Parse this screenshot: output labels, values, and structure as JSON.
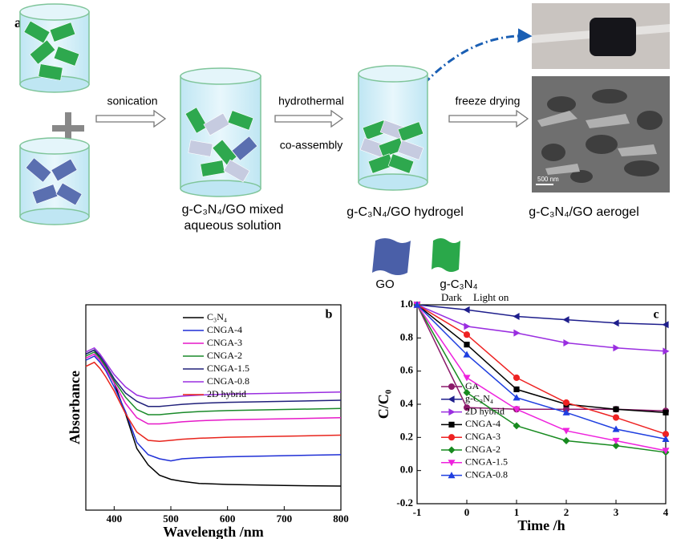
{
  "schematic": {
    "panel": "a",
    "arrows": [
      "sonication",
      "hydrothermal",
      "co-assembly",
      "freeze drying"
    ],
    "captions": [
      "g-C₃N₄/GO mixed",
      "aqueous solution",
      "g-C₃N₄/GO hydrogel",
      "g-C₃N₄/GO aerogel"
    ],
    "legend": [
      "GO",
      "g-C₃N₄"
    ],
    "scale_bar": "500 nm"
  },
  "chart_data": [
    {
      "type": "line",
      "panel": "b",
      "x_label": "Wavelength /nm",
      "y_label": "Absorbance",
      "x": [
        350,
        365,
        375,
        385,
        400,
        420,
        440,
        460,
        480,
        500,
        520,
        550,
        600,
        700,
        800
      ],
      "xlim": [
        350,
        800
      ],
      "xticks": [
        400,
        500,
        600,
        700,
        800
      ],
      "ylim": [
        0,
        1
      ],
      "series": [
        {
          "name": "C₃N₄",
          "color": "#000000",
          "values": [
            0.76,
            0.78,
            0.74,
            0.7,
            0.62,
            0.47,
            0.3,
            0.22,
            0.17,
            0.15,
            0.14,
            0.13,
            0.125,
            0.12,
            0.117
          ]
        },
        {
          "name": "CNGA-4",
          "color": "#1f2fd6",
          "values": [
            0.73,
            0.75,
            0.72,
            0.68,
            0.6,
            0.48,
            0.33,
            0.27,
            0.25,
            0.24,
            0.25,
            0.255,
            0.26,
            0.265,
            0.27
          ]
        },
        {
          "name": "CNGA-3",
          "color": "#e619c8",
          "values": [
            0.74,
            0.76,
            0.73,
            0.69,
            0.62,
            0.52,
            0.45,
            0.42,
            0.42,
            0.425,
            0.43,
            0.435,
            0.44,
            0.445,
            0.45
          ]
        },
        {
          "name": "CNGA-2",
          "color": "#1a8a2a",
          "values": [
            0.75,
            0.77,
            0.74,
            0.7,
            0.63,
            0.55,
            0.49,
            0.465,
            0.465,
            0.47,
            0.475,
            0.48,
            0.485,
            0.49,
            0.495
          ]
        },
        {
          "name": "CNGA-1.5",
          "color": "#20207a",
          "values": [
            0.76,
            0.78,
            0.75,
            0.71,
            0.64,
            0.57,
            0.53,
            0.505,
            0.505,
            0.51,
            0.515,
            0.52,
            0.525,
            0.53,
            0.535
          ]
        },
        {
          "name": "CNGA-0.8",
          "color": "#9a2ee0",
          "values": [
            0.77,
            0.79,
            0.76,
            0.72,
            0.66,
            0.6,
            0.56,
            0.545,
            0.545,
            0.55,
            0.555,
            0.56,
            0.565,
            0.57,
            0.575
          ]
        },
        {
          "name": "2D hybrid",
          "color": "#e8241c",
          "values": [
            0.7,
            0.72,
            0.69,
            0.65,
            0.58,
            0.47,
            0.38,
            0.34,
            0.335,
            0.34,
            0.345,
            0.35,
            0.355,
            0.36,
            0.365
          ]
        }
      ]
    },
    {
      "type": "line",
      "panel": "c",
      "x_label": "Time /h",
      "y_label": "C/C₀",
      "annotations": [
        "Dark",
        "Light on"
      ],
      "x": [
        -1,
        0,
        1,
        2,
        3,
        4
      ],
      "xlim": [
        -1,
        4
      ],
      "xticks": [
        -1,
        0,
        1,
        2,
        3,
        4
      ],
      "ylim": [
        -0.2,
        1.0
      ],
      "yticks": [
        -0.2,
        {
          "value": 0.0,
          "label": "0.0"
        },
        0.2,
        0.4,
        0.6,
        0.8,
        {
          "value": 1.0,
          "label": "1.0"
        }
      ],
      "series": [
        {
          "name": "GA",
          "color": "#8b1a6b",
          "marker": "circle",
          "values": [
            1.0,
            0.38,
            0.37,
            0.37,
            0.37,
            0.36
          ]
        },
        {
          "name": "g-C₃N₄",
          "color": "#1e1e8c",
          "marker": "triangle-left",
          "values": [
            1.0,
            0.97,
            0.93,
            0.91,
            0.89,
            0.88
          ]
        },
        {
          "name": "2D hybrid",
          "color": "#9a2ee0",
          "marker": "triangle-right",
          "values": [
            1.0,
            0.87,
            0.83,
            0.77,
            0.74,
            0.72
          ]
        },
        {
          "name": "CNGA-4",
          "color": "#000000",
          "marker": "square",
          "values": [
            1.0,
            0.76,
            0.49,
            0.4,
            0.37,
            0.35
          ]
        },
        {
          "name": "CNGA-3",
          "color": "#ee2222",
          "marker": "circle",
          "values": [
            1.0,
            0.82,
            0.56,
            0.41,
            0.32,
            0.22
          ]
        },
        {
          "name": "CNGA-2",
          "color": "#178a1f",
          "marker": "diamond",
          "values": [
            1.0,
            0.47,
            0.27,
            0.18,
            0.15,
            0.11
          ]
        },
        {
          "name": "CNGA-1.5",
          "color": "#ee22dd",
          "marker": "triangle-down",
          "values": [
            1.0,
            0.56,
            0.37,
            0.24,
            0.18,
            0.12
          ]
        },
        {
          "name": "CNGA-0.8",
          "color": "#1f3fe0",
          "marker": "triangle-up",
          "values": [
            1.0,
            0.7,
            0.44,
            0.35,
            0.25,
            0.19
          ]
        }
      ]
    }
  ]
}
